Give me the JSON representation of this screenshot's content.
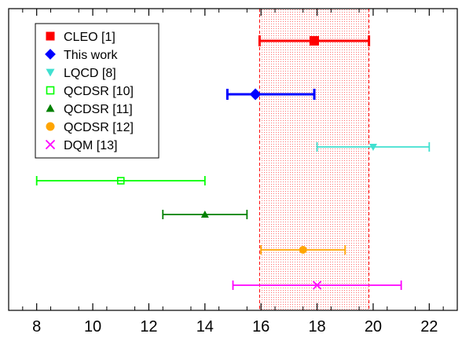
{
  "chart_data": {
    "type": "scatter",
    "title": "",
    "xlabel": "",
    "ylabel": "",
    "xlim": [
      7,
      23
    ],
    "xticks": [
      "8",
      "10",
      "12",
      "14",
      "16",
      "18",
      "20",
      "22"
    ],
    "band": {
      "x_from": 15.95,
      "x_to": 19.85,
      "color": "#ff0000"
    },
    "series": [
      {
        "name": "CLEO [1]",
        "value": 17.9,
        "err_low": 15.95,
        "err_high": 19.85,
        "color": "#ff0000",
        "marker": "square-filled",
        "thick": true
      },
      {
        "name": "This work",
        "value": 15.8,
        "err_low": 14.8,
        "err_high": 17.9,
        "color": "#0000ff",
        "marker": "diamond-filled",
        "thick": true
      },
      {
        "name": "LQCD [8]",
        "value": 20.0,
        "err_low": 18.0,
        "err_high": 22.0,
        "color": "#40e0d0",
        "marker": "triangle-down-filled",
        "thick": false
      },
      {
        "name": "QCDSR [10]",
        "value": 11.0,
        "err_low": 8.0,
        "err_high": 14.0,
        "color": "#00ff00",
        "marker": "square-open",
        "thick": false
      },
      {
        "name": "QCDSR [11]",
        "value": 14.0,
        "err_low": 12.5,
        "err_high": 15.5,
        "color": "#008000",
        "marker": "triangle-up-filled",
        "thick": false
      },
      {
        "name": "QCDSR [12]",
        "value": 17.5,
        "err_low": 16.0,
        "err_high": 19.0,
        "color": "#ffa500",
        "marker": "circle-filled",
        "thick": false
      },
      {
        "name": "DQM [13]",
        "value": 18.0,
        "err_low": 15.0,
        "err_high": 21.0,
        "color": "#ff00ff",
        "marker": "x",
        "thick": false
      }
    ],
    "legend": "top-left",
    "grid": false
  }
}
